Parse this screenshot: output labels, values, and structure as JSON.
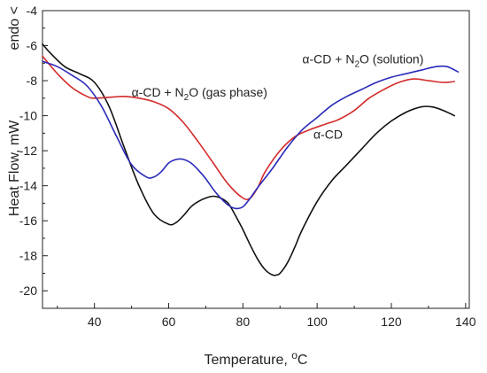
{
  "chart_data": {
    "type": "line",
    "title": "",
    "xlabel": "Temperature, ",
    "xlabel_sup": "o",
    "xlabel_unit": "C",
    "ylabel": "Heat Flow, mW",
    "ylabel_note": "endo <",
    "xlim": [
      26,
      141
    ],
    "ylim": [
      -21,
      -4
    ],
    "xticks": [
      40,
      60,
      80,
      100,
      120,
      140
    ],
    "yticks": [
      -20,
      -18,
      -16,
      -14,
      -12,
      -10,
      -8,
      -6,
      -4
    ],
    "grid": false,
    "series": [
      {
        "name": "α-CD",
        "color": "#111111",
        "x": [
          26,
          28,
          32,
          36,
          40,
          44,
          48,
          52,
          56,
          60,
          62,
          64,
          66,
          68,
          70,
          72,
          74,
          76,
          78,
          80,
          82,
          84,
          86,
          88,
          89,
          90,
          92,
          94,
          96,
          100,
          104,
          108,
          112,
          116,
          120,
          124,
          128,
          131,
          134,
          137
        ],
        "y": [
          -5.9,
          -6.4,
          -7.2,
          -7.6,
          -8.1,
          -9.5,
          -11.8,
          -14.0,
          -15.6,
          -16.2,
          -16.1,
          -15.7,
          -15.2,
          -14.9,
          -14.7,
          -14.6,
          -14.7,
          -15.0,
          -15.7,
          -16.5,
          -17.4,
          -18.2,
          -18.8,
          -19.1,
          -19.1,
          -19.0,
          -18.4,
          -17.5,
          -16.5,
          -14.9,
          -13.7,
          -12.8,
          -11.9,
          -11.0,
          -10.3,
          -9.8,
          -9.5,
          -9.5,
          -9.7,
          -10.0
        ],
        "label_x": 99,
        "label_y": -11.3,
        "label": "α-CD"
      },
      {
        "name": "α-CD + N2O (gas phase)",
        "color": "#d42a2a",
        "x": [
          26,
          30,
          34,
          38,
          40,
          44,
          48,
          52,
          56,
          60,
          64,
          68,
          72,
          76,
          80,
          82,
          84,
          86,
          90,
          94,
          98,
          102,
          106,
          110,
          114,
          118,
          122,
          126,
          130,
          134,
          137
        ],
        "y": [
          -6.6,
          -7.6,
          -8.4,
          -8.9,
          -9.0,
          -8.95,
          -8.9,
          -9.0,
          -9.2,
          -9.6,
          -10.4,
          -11.5,
          -12.7,
          -13.9,
          -14.7,
          -14.7,
          -14.1,
          -13.2,
          -12.0,
          -11.2,
          -10.8,
          -10.5,
          -10.2,
          -9.7,
          -9.0,
          -8.5,
          -8.1,
          -7.9,
          -8.0,
          -8.1,
          -8.05
        ],
        "label_x": 50,
        "label_y": -8.9,
        "label_prefix": "α-CD + N",
        "label_sub": "2",
        "label_suffix": "O (gas phase)"
      },
      {
        "name": "α-CD + N2O (solution)",
        "color": "#2a2ab8",
        "x": [
          26,
          30,
          34,
          38,
          42,
          46,
          50,
          54,
          56,
          58,
          60,
          62,
          64,
          66,
          68,
          70,
          72,
          74,
          76,
          78,
          80,
          82,
          84,
          88,
          92,
          96,
          100,
          104,
          108,
          112,
          116,
          120,
          124,
          128,
          132,
          135,
          138
        ],
        "y": [
          -6.9,
          -7.2,
          -7.7,
          -8.3,
          -9.5,
          -11.2,
          -12.8,
          -13.5,
          -13.5,
          -13.2,
          -12.7,
          -12.5,
          -12.5,
          -12.7,
          -13.1,
          -13.6,
          -14.2,
          -14.7,
          -15.1,
          -15.3,
          -15.2,
          -14.7,
          -14.1,
          -13.0,
          -11.8,
          -10.8,
          -10.1,
          -9.4,
          -8.9,
          -8.5,
          -8.1,
          -7.8,
          -7.6,
          -7.4,
          -7.2,
          -7.2,
          -7.5
        ],
        "label_x": 96,
        "label_y": -7.0,
        "label_prefix": "α-CD + N",
        "label_sub": "2",
        "label_suffix": "O (solution)"
      }
    ]
  }
}
